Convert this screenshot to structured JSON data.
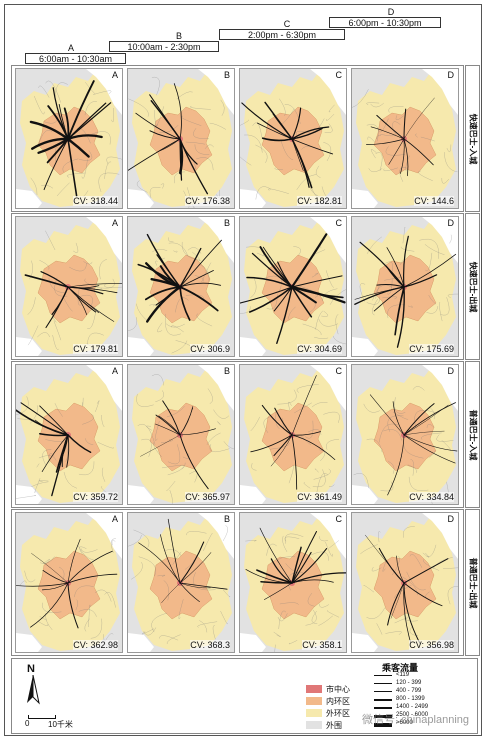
{
  "time_periods": [
    {
      "letter": "A",
      "range": "6:00am - 10:30am"
    },
    {
      "letter": "B",
      "range": "10:00am - 2:30pm"
    },
    {
      "letter": "C",
      "range": "2:00pm - 6:30pm"
    },
    {
      "letter": "D",
      "range": "6:00pm - 10:30pm"
    }
  ],
  "rows": [
    {
      "label": "快速巴士-入城",
      "cv": [
        "CV: 318.44",
        "CV: 176.38",
        "CV: 182.81",
        "CV: 144.6"
      ],
      "flow_level": [
        3,
        2,
        2,
        1
      ]
    },
    {
      "label": "快速巴士-出城",
      "cv": [
        "CV: 179.81",
        "CV: 306.9",
        "CV: 304.69",
        "CV: 175.69"
      ],
      "flow_level": [
        2,
        3,
        3,
        2
      ]
    },
    {
      "label": "普通巴士-入城",
      "cv": [
        "CV: 359.72",
        "CV: 365.97",
        "CV: 361.49",
        "CV: 334.84"
      ],
      "flow_level": [
        2,
        1,
        1,
        1
      ]
    },
    {
      "label": "普通巴士-出城",
      "cv": [
        "CV: 362.98",
        "CV: 368.3",
        "CV: 358.1",
        "CV: 356.98"
      ],
      "flow_level": [
        1,
        1,
        2,
        1
      ]
    }
  ],
  "legend": {
    "zones": [
      {
        "label": "市中心",
        "color": "#e07777"
      },
      {
        "label": "内环区",
        "color": "#f2b98a"
      },
      {
        "label": "外环区",
        "color": "#f6e9ad"
      },
      {
        "label": "外围",
        "color": "#e2e2e2"
      }
    ],
    "flow_title": "乘客流量",
    "flow_classes": [
      "<119",
      "120 - 399",
      "400 - 799",
      "800 - 1399",
      "1400 - 2499",
      "2500 - 6000",
      ">6000"
    ]
  },
  "scale": {
    "zero": "0",
    "label": "10千米"
  },
  "north": "N",
  "watermark": "微信号: chinaplanning",
  "colors": {
    "downtown": "#e07777",
    "inner": "#f2b98a",
    "outer": "#f6e9ad",
    "periphery": "#e2e2e2",
    "white": "#ffffff",
    "route": "#111111"
  }
}
